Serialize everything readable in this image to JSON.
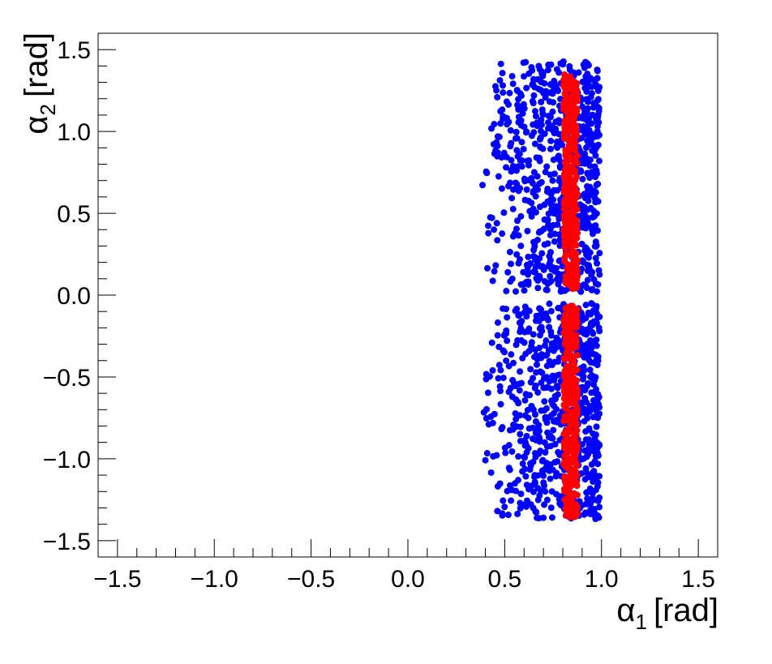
{
  "chart_data": {
    "type": "scatter",
    "title": "",
    "xlabel": {
      "symbol": "α",
      "subscript": "1",
      "unit": "[rad]"
    },
    "ylabel": {
      "symbol": "α",
      "subscript": "2",
      "unit": "[rad]"
    },
    "xlim": [
      -1.6,
      1.6
    ],
    "ylim": [
      -1.6,
      1.6
    ],
    "x_ticks": [
      -1.5,
      -1.0,
      -0.5,
      0.0,
      0.5,
      1.0,
      1.5
    ],
    "y_ticks": [
      -1.5,
      -1.0,
      -0.5,
      0.0,
      0.5,
      1.0,
      1.5
    ],
    "x_tick_labels": [
      "−1.5",
      "−1.0",
      "−0.5",
      "0.0",
      "0.5",
      "1.0",
      "1.5"
    ],
    "y_tick_labels": [
      "−1.5",
      "−1.0",
      "−0.5",
      "0.0",
      "0.5",
      "1.0",
      "1.5"
    ],
    "grid": false,
    "legend": "none",
    "series": [
      {
        "color": "#0000ff",
        "regions": [
          {
            "x_range": [
              0.38,
              0.99
            ],
            "y_range": [
              0.02,
              1.43
            ]
          },
          {
            "x_range": [
              0.38,
              0.99
            ],
            "y_range": [
              -1.37,
              -0.05
            ]
          }
        ]
      },
      {
        "color": "#ff0000",
        "regions": [
          {
            "x_range": [
              0.8,
              0.88
            ],
            "y_range": [
              0.03,
              1.35
            ]
          },
          {
            "x_range": [
              0.8,
              0.88
            ],
            "y_range": [
              -1.36,
              -0.06
            ]
          }
        ]
      }
    ]
  }
}
